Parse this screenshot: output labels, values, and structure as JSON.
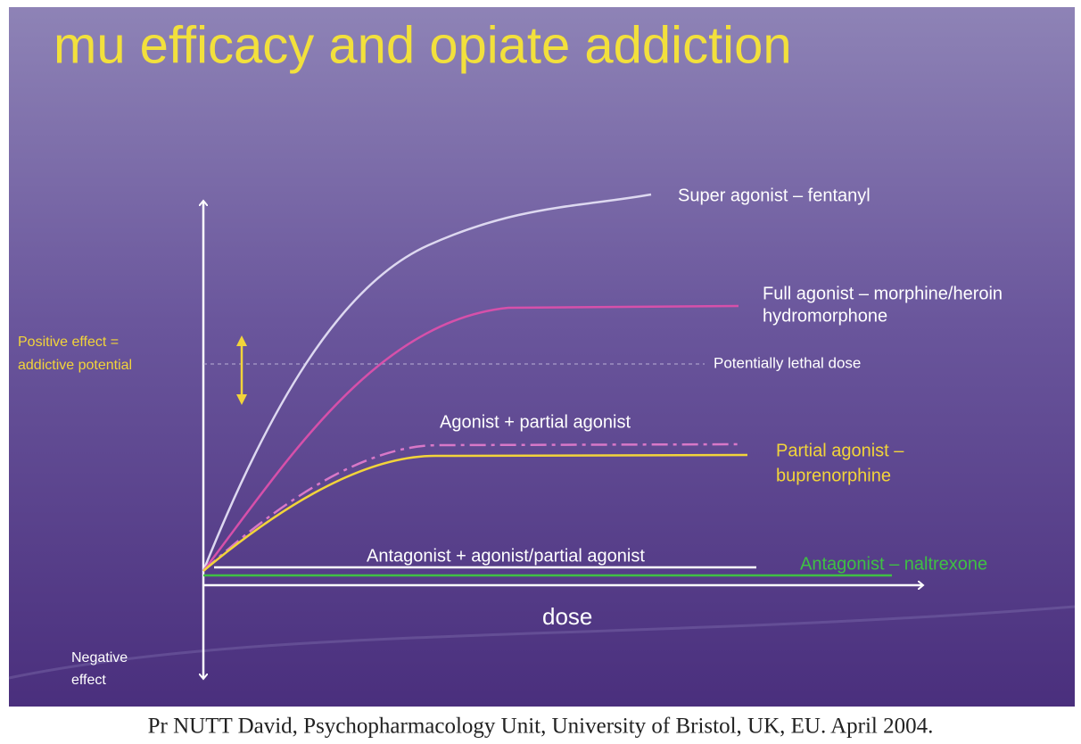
{
  "title": "mu efficacy and opiate addiction",
  "y_axis": {
    "positive": [
      "Positive effect =",
      "addictive potential"
    ],
    "negative": [
      "Negative",
      "effect"
    ]
  },
  "x_axis": {
    "label": "dose"
  },
  "curves": [
    {
      "label": [
        "Super agonist – fentanyl"
      ]
    },
    {
      "label": [
        "Full agonist – morphine/heroin",
        "hydromorphone"
      ]
    },
    {
      "label": [
        "Agonist + partial agonist"
      ]
    },
    {
      "label": [
        "Partial agonist –",
        "buprenorphine"
      ]
    },
    {
      "label": [
        "Antagonist + agonist/partial agonist"
      ]
    },
    {
      "label": [
        "Antagonist – naltrexone"
      ]
    }
  ],
  "threshold": {
    "label": "Potentially lethal dose"
  },
  "footer": "Pr NUTT David, Psychopharmacology Unit, University of Bristol, UK, EU. April 2004."
}
